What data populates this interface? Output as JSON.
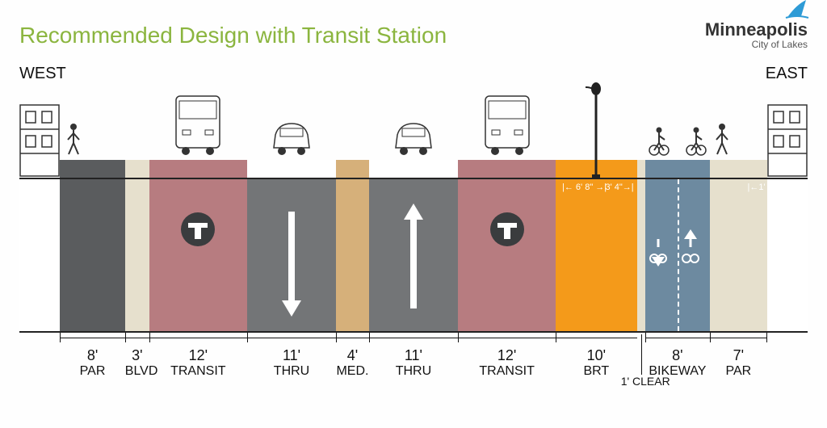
{
  "title": "Recommended Design with Transit Station",
  "logo": {
    "city": "Minneapolis",
    "tagline": "City of Lakes"
  },
  "direction_left": "WEST",
  "direction_right": "EAST",
  "clear_label": "1' CLEAR",
  "colors": {
    "par": "#5a5c5e",
    "blvd": "#e6e0cd",
    "transit": "#b77c80",
    "thru": "#737577",
    "median": "#d6b07a",
    "brt": "#f49a1a",
    "bikeway": "#6d8aa0",
    "edge_building": "#ffffff"
  },
  "brt_subdims": {
    "left": "6' 8\"",
    "right": "3' 4\"",
    "far_right": "1'"
  },
  "segments": [
    {
      "key": "edgeW",
      "width_ft": 5,
      "label_w": "",
      "label_t": "",
      "below_color": "#ffffff",
      "strip_color": "#ffffff"
    },
    {
      "key": "parW",
      "width_ft": 8,
      "label_w": "8'",
      "label_t": "PAR",
      "below_color": "#5a5c5e",
      "strip_color": "#5a5c5e"
    },
    {
      "key": "blvdW",
      "width_ft": 3,
      "label_w": "3'",
      "label_t": "BLVD",
      "below_color": "#e6e0cd",
      "strip_color": "#e6e0cd"
    },
    {
      "key": "transitW",
      "width_ft": 12,
      "label_w": "12'",
      "label_t": "TRANSIT",
      "below_color": "#b77c80",
      "strip_color": "#b77c80"
    },
    {
      "key": "thruW",
      "width_ft": 11,
      "label_w": "11'",
      "label_t": "THRU",
      "below_color": "#737577",
      "strip_color": "#ffffff"
    },
    {
      "key": "median",
      "width_ft": 4,
      "label_w": "4'",
      "label_t": "MED.",
      "below_color": "#d6b07a",
      "strip_color": "#d6b07a"
    },
    {
      "key": "thruE",
      "width_ft": 11,
      "label_w": "11'",
      "label_t": "THRU",
      "below_color": "#737577",
      "strip_color": "#ffffff"
    },
    {
      "key": "transitE",
      "width_ft": 12,
      "label_w": "12'",
      "label_t": "TRANSIT",
      "below_color": "#b77c80",
      "strip_color": "#b77c80"
    },
    {
      "key": "brt",
      "width_ft": 10,
      "label_w": "10'",
      "label_t": "BRT",
      "below_color": "#f49a1a",
      "strip_color": "#f49a1a"
    },
    {
      "key": "clear",
      "width_ft": 1,
      "label_w": "",
      "label_t": "",
      "below_color": "#e6e0cd",
      "strip_color": "#e6e0cd"
    },
    {
      "key": "bikeway",
      "width_ft": 8,
      "label_w": "8'",
      "label_t": "BIKEWAY",
      "below_color": "#6d8aa0",
      "strip_color": "#6d8aa0"
    },
    {
      "key": "parE",
      "width_ft": 7,
      "label_w": "7'",
      "label_t": "PAR",
      "below_color": "#e6e0cd",
      "strip_color": "#e6e0cd"
    },
    {
      "key": "edgeE",
      "width_ft": 5,
      "label_w": "",
      "label_t": "",
      "below_color": "#ffffff",
      "strip_color": "#ffffff"
    }
  ]
}
